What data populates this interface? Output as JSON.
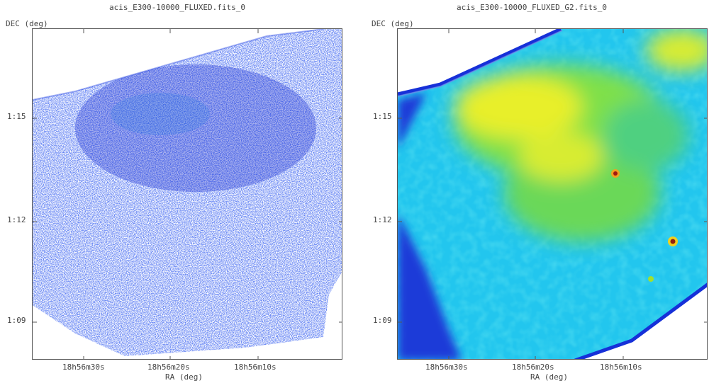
{
  "left_panel": {
    "title": "acis_E300-10000_FLUXED.fits_0",
    "ylabel": "DEC (deg)",
    "xlabel": "RA (deg)",
    "yticks": [
      "1:15",
      "1:12",
      "1:09"
    ],
    "xticks": [
      "18h56m30s",
      "18h56m20s",
      "18h56m10s"
    ]
  },
  "right_panel": {
    "title": "acis_E300-10000_FLUXED_G2.fits_0",
    "ylabel": "DEC (deg)",
    "xlabel": "RA (deg)",
    "yticks": [
      "1:15",
      "1:12",
      "1:09"
    ],
    "xticks": [
      "18h56m30s",
      "18h56m20s",
      "18h56m10s"
    ]
  },
  "colors": {
    "raw_pixels": "#1f3fe0",
    "smooth_low": "#1a3fe8",
    "smooth_mid": "#19d4e6",
    "smooth_high": "#8fe03a",
    "smooth_peak": "#f0f020",
    "source": "#b02010"
  }
}
